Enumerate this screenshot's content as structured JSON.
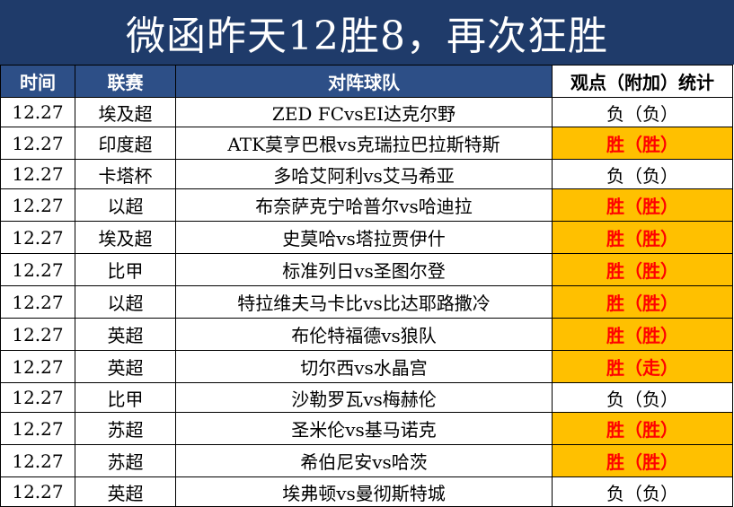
{
  "title": "微函昨天12胜8，再次狂胜",
  "headers": {
    "time": "时间",
    "league": "联赛",
    "match": "对阵球队",
    "stat": "观点（附加）统计"
  },
  "rows": [
    {
      "date": "12.27",
      "league": "埃及超",
      "match": "ZED FCvsEI达克尔野",
      "result": "负（负）",
      "win": false
    },
    {
      "date": "12.27",
      "league": "印度超",
      "match": "ATK莫亨巴根vs克瑞拉巴拉斯特斯",
      "result": "胜（胜）",
      "win": true
    },
    {
      "date": "12.27",
      "league": "卡塔杯",
      "match": "多哈艾阿利vs艾马希亚",
      "result": "负（负）",
      "win": false
    },
    {
      "date": "12.27",
      "league": "以超",
      "match": "布奈萨克宁哈普尔vs哈迪拉",
      "result": "胜（胜）",
      "win": true
    },
    {
      "date": "12.27",
      "league": "埃及超",
      "match": "史莫哈vs塔拉贾伊什",
      "result": "胜（胜）",
      "win": true
    },
    {
      "date": "12.27",
      "league": "比甲",
      "match": "标准列日vs圣图尔登",
      "result": "胜（胜）",
      "win": true
    },
    {
      "date": "12.27",
      "league": "以超",
      "match": "特拉维夫马卡比vs比达耶路撒冷",
      "result": "胜（胜）",
      "win": true
    },
    {
      "date": "12.27",
      "league": "英超",
      "match": "布伦特福德vs狼队",
      "result": "胜（胜）",
      "win": true
    },
    {
      "date": "12.27",
      "league": "英超",
      "match": "切尔西vs水晶宫",
      "result": "胜（走）",
      "win": true
    },
    {
      "date": "12.27",
      "league": "比甲",
      "match": "沙勒罗瓦vs梅赫伦",
      "result": "负（负）",
      "win": false
    },
    {
      "date": "12.27",
      "league": "苏超",
      "match": "圣米伦vs基马诺克",
      "result": "胜（胜）",
      "win": true
    },
    {
      "date": "12.27",
      "league": "苏超",
      "match": "希伯尼安vs哈茨",
      "result": "胜（胜）",
      "win": true
    },
    {
      "date": "12.27",
      "league": "英超",
      "match": "埃弗顿vs曼彻斯特城",
      "result": "负（负）",
      "win": false
    }
  ]
}
